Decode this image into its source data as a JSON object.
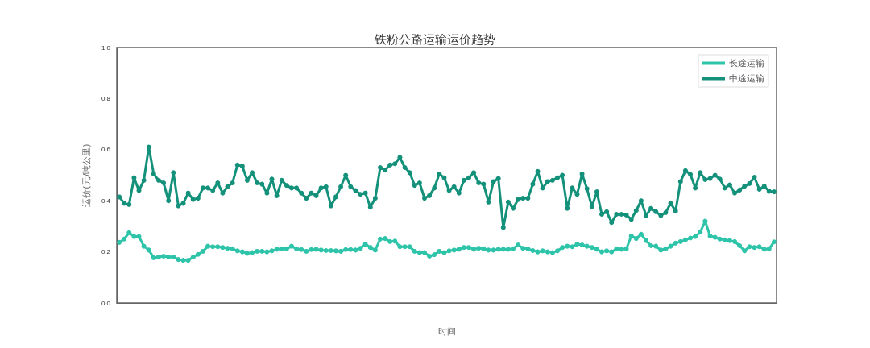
{
  "chart_data": {
    "type": "line",
    "title": "铁粉公路运输运价趋势",
    "xlabel": "时间",
    "ylabel": "运价(元/吨公里)",
    "categories": [
      null,
      null,
      null,
      null,
      null,
      null,
      null,
      null,
      null,
      null,
      null,
      null,
      null,
      null,
      null,
      null,
      null,
      null,
      null,
      null,
      null,
      null,
      null,
      null,
      null,
      null,
      null,
      null,
      null,
      null,
      null,
      null,
      null,
      null,
      null,
      null,
      null,
      null,
      null,
      null,
      null,
      null,
      null,
      null,
      null,
      null,
      null,
      null,
      null,
      null,
      null,
      null,
      null,
      null,
      null,
      null,
      null,
      null,
      null,
      null,
      null,
      null,
      null,
      null,
      null,
      null,
      null,
      null,
      null,
      null,
      null,
      null,
      null,
      null,
      null,
      null,
      null,
      null,
      null,
      null,
      null,
      null,
      null,
      null,
      null,
      null,
      null,
      null,
      null,
      null,
      null,
      null,
      null,
      null,
      null,
      null,
      null,
      null,
      null,
      null,
      null,
      null,
      null,
      null,
      null,
      null,
      null,
      null,
      null,
      null,
      null,
      null,
      null,
      null,
      null,
      null,
      null,
      null,
      null,
      null,
      null,
      null,
      null,
      null,
      null,
      null,
      null,
      null,
      null,
      null,
      null,
      null,
      null,
      null
    ],
    "series": [
      {
        "name": "长途运输",
        "color": "#2ec4a9",
        "values": [
          0.237,
          0.25,
          0.275,
          0.26,
          0.26,
          0.222,
          0.207,
          0.177,
          0.18,
          0.183,
          0.18,
          0.18,
          0.17,
          0.167,
          0.167,
          0.179,
          0.19,
          0.202,
          0.222,
          0.22,
          0.22,
          0.217,
          0.214,
          0.212,
          0.204,
          0.2,
          0.194,
          0.197,
          0.202,
          0.202,
          0.2,
          0.204,
          0.21,
          0.212,
          0.212,
          0.222,
          0.212,
          0.209,
          0.202,
          0.209,
          0.21,
          0.207,
          0.205,
          0.205,
          0.204,
          0.202,
          0.209,
          0.209,
          0.207,
          0.214,
          0.23,
          0.217,
          0.207,
          0.25,
          0.252,
          0.24,
          0.242,
          0.22,
          0.22,
          0.22,
          0.202,
          0.197,
          0.197,
          0.183,
          0.189,
          0.202,
          0.197,
          0.204,
          0.207,
          0.21,
          0.217,
          0.217,
          0.21,
          0.214,
          0.212,
          0.207,
          0.207,
          0.21,
          0.21,
          0.21,
          0.212,
          0.227,
          0.214,
          0.212,
          0.205,
          0.2,
          0.204,
          0.2,
          0.197,
          0.204,
          0.217,
          0.222,
          0.22,
          0.23,
          0.227,
          0.222,
          0.217,
          0.21,
          0.2,
          0.204,
          0.2,
          0.212,
          0.21,
          0.212,
          0.262,
          0.252,
          0.269,
          0.244,
          0.224,
          0.222,
          0.207,
          0.212,
          0.222,
          0.234,
          0.24,
          0.247,
          0.254,
          0.26,
          0.277,
          0.32,
          0.262,
          0.257,
          0.25,
          0.247,
          0.244,
          0.24,
          0.224,
          0.204,
          0.22,
          0.217,
          0.22,
          0.21,
          0.212,
          0.239
        ]
      },
      {
        "name": "中途运输",
        "color": "#14917a",
        "values": [
          0.415,
          0.39,
          0.385,
          0.49,
          0.44,
          0.48,
          0.61,
          0.505,
          0.48,
          0.47,
          0.4,
          0.51,
          0.38,
          0.39,
          0.43,
          0.405,
          0.41,
          0.45,
          0.45,
          0.44,
          0.47,
          0.43,
          0.455,
          0.47,
          0.54,
          0.535,
          0.48,
          0.51,
          0.47,
          0.465,
          0.43,
          0.485,
          0.42,
          0.48,
          0.46,
          0.45,
          0.45,
          0.43,
          0.41,
          0.43,
          0.42,
          0.45,
          0.455,
          0.38,
          0.415,
          0.455,
          0.5,
          0.455,
          0.44,
          0.425,
          0.43,
          0.375,
          0.41,
          0.53,
          0.52,
          0.54,
          0.545,
          0.57,
          0.53,
          0.51,
          0.46,
          0.47,
          0.41,
          0.42,
          0.45,
          0.505,
          0.49,
          0.44,
          0.455,
          0.43,
          0.48,
          0.49,
          0.51,
          0.47,
          0.465,
          0.395,
          0.475,
          0.487,
          0.295,
          0.395,
          0.37,
          0.405,
          0.41,
          0.41,
          0.465,
          0.515,
          0.45,
          0.475,
          0.48,
          0.49,
          0.5,
          0.37,
          0.45,
          0.425,
          0.505,
          0.447,
          0.377,
          0.435,
          0.347,
          0.357,
          0.315,
          0.347,
          0.347,
          0.344,
          0.327,
          0.362,
          0.4,
          0.342,
          0.37,
          0.357,
          0.342,
          0.354,
          0.39,
          0.36,
          0.475,
          0.518,
          0.503,
          0.45,
          0.51,
          0.483,
          0.487,
          0.5,
          0.485,
          0.45,
          0.462,
          0.43,
          0.442,
          0.457,
          0.467,
          0.492,
          0.445,
          0.457,
          0.437,
          0.435
        ]
      }
    ],
    "ylim": [
      0,
      1
    ],
    "yticks": [
      {
        "value": 0,
        "label": "0.0"
      },
      0.2,
      0.4,
      0.6,
      0.8,
      {
        "value": 1,
        "label": "1.0"
      }
    ],
    "legend": "top right",
    "marker": "circle"
  }
}
